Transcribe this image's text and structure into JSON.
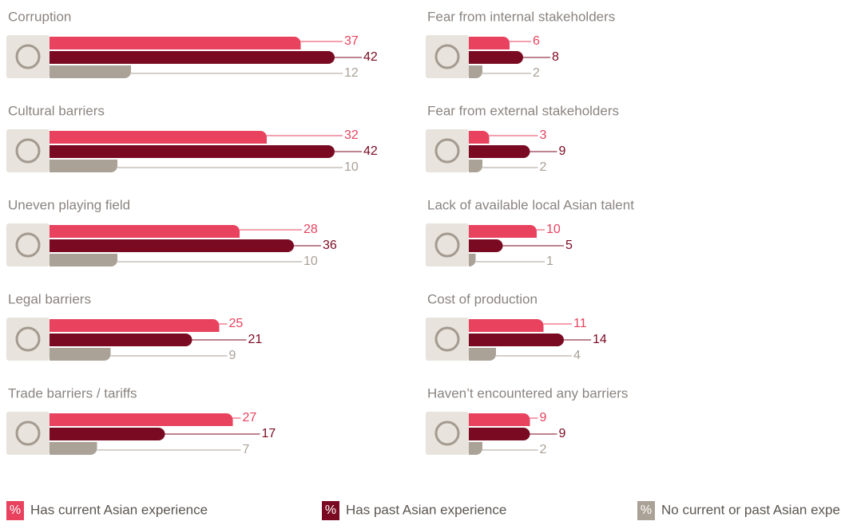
{
  "chart_data": {
    "type": "bar",
    "categories": [
      "Corruption",
      "Cultural barriers",
      "Uneven playing field",
      "Legal barriers",
      "Trade barriers / tariffs",
      "Fear from internal stakeholders",
      "Fear from external stakeholders",
      "Lack of available local Asian talent",
      "Cost of production",
      "Haven’t encountered any barriers"
    ],
    "series": [
      {
        "name": "Has current Asian experience",
        "color": "#e8425e",
        "values": [
          37,
          32,
          28,
          25,
          27,
          6,
          3,
          10,
          11,
          9
        ]
      },
      {
        "name": "Has past Asian experience",
        "color": "#7a0a22",
        "values": [
          42,
          42,
          36,
          21,
          17,
          8,
          9,
          5,
          14,
          9
        ]
      },
      {
        "name": "No current or past Asian experience",
        "color": "#aaa197",
        "values": [
          12,
          10,
          10,
          9,
          7,
          2,
          2,
          1,
          4,
          2
        ]
      }
    ],
    "legend_symbol": "%"
  }
}
